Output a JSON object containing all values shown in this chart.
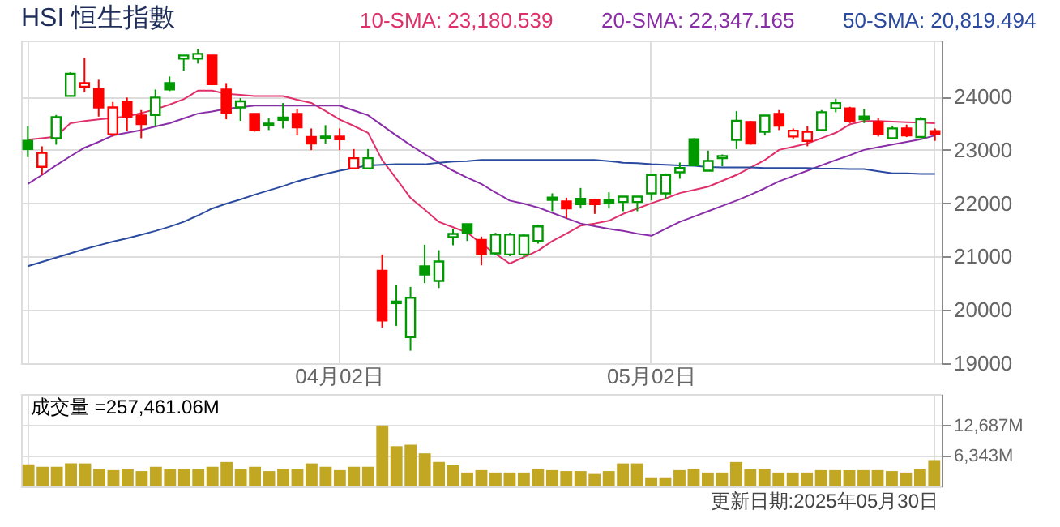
{
  "chart_data": [
    {
      "type": "candlestick",
      "title": "HSI 恒生指數",
      "categories": [
        null,
        null,
        null,
        null,
        null,
        null,
        null,
        null,
        null,
        null,
        null,
        null,
        null,
        null,
        null,
        null,
        null,
        null,
        null,
        null,
        null,
        null,
        "04月02日",
        null,
        null,
        null,
        null,
        null,
        null,
        null,
        null,
        null,
        null,
        null,
        null,
        null,
        null,
        null,
        null,
        null,
        null,
        null,
        null,
        null,
        "05月02日",
        null,
        null,
        null,
        null,
        null,
        null,
        null,
        null,
        null,
        null,
        null,
        null,
        null,
        null,
        null,
        null,
        null,
        null,
        null,
        null
      ],
      "ohlc": [
        [
          23169,
          23442,
          22864,
          23016
        ],
        [
          22682,
          23067,
          22530,
          22945
        ],
        [
          23219,
          23655,
          23098,
          23615
        ],
        [
          24010,
          24456,
          24010,
          24426
        ],
        [
          24183,
          24720,
          24081,
          24253
        ],
        [
          24142,
          24314,
          23625,
          23797
        ],
        [
          23290,
          23899,
          23250,
          23797
        ],
        [
          23899,
          23980,
          23351,
          23625
        ],
        [
          23645,
          23747,
          23219,
          23483
        ],
        [
          23655,
          24132,
          23442,
          23980
        ],
        [
          24253,
          24375,
          24101,
          24132
        ],
        [
          24710,
          24771,
          24487,
          24771
        ],
        [
          24710,
          24892,
          24619,
          24801
        ],
        [
          24771,
          24771,
          24213,
          24233
        ],
        [
          24132,
          24253,
          23574,
          23696
        ],
        [
          23797,
          23970,
          23544,
          23909
        ],
        [
          23676,
          23676,
          23341,
          23371
        ],
        [
          23493,
          23594,
          23371,
          23463
        ],
        [
          23605,
          23878,
          23402,
          23564
        ],
        [
          23676,
          23767,
          23270,
          23422
        ],
        [
          23240,
          23402,
          22996,
          23118
        ],
        [
          23250,
          23463,
          23118,
          23219
        ],
        [
          23250,
          23402,
          22996,
          23199
        ],
        [
          22651,
          23016,
          22651,
          22844
        ],
        [
          22651,
          23016,
          22651,
          22844
        ],
        [
          20735,
          21039,
          19670,
          19802
        ],
        [
          20157,
          20461,
          19701,
          20127
        ],
        [
          19488,
          20431,
          19234,
          20228
        ],
        [
          20816,
          21222,
          20502,
          20664
        ],
        [
          20542,
          21120,
          20410,
          20907
        ],
        [
          21364,
          21516,
          21212,
          21424
        ],
        [
          21607,
          21607,
          21293,
          21445
        ],
        [
          21313,
          21374,
          20836,
          21039
        ],
        [
          21059,
          21445,
          21039,
          21414
        ],
        [
          21039,
          21445,
          21009,
          21414
        ],
        [
          21039,
          21414,
          20988,
          21394
        ],
        [
          21293,
          21597,
          21242,
          21566
        ],
        [
          22104,
          22185,
          21850,
          22063
        ],
        [
          22033,
          22104,
          21718,
          21901
        ],
        [
          22084,
          22286,
          21901,
          21982
        ],
        [
          22063,
          22084,
          21800,
          21982
        ],
        [
          22063,
          22205,
          21901,
          22002
        ],
        [
          22023,
          22124,
          21850,
          22124
        ],
        [
          22023,
          22124,
          21850,
          22124
        ],
        [
          22185,
          22530,
          22053,
          22530
        ],
        [
          22185,
          22560,
          22084,
          22530
        ],
        [
          22580,
          22763,
          22459,
          22662
        ],
        [
          23199,
          23219,
          22712,
          22712
        ],
        [
          22611,
          22986,
          22611,
          22793
        ],
        [
          22844,
          22915,
          22692,
          22885
        ],
        [
          23189,
          23726,
          23016,
          23544
        ],
        [
          23523,
          23544,
          23098,
          23118
        ],
        [
          23341,
          23645,
          23270,
          23645
        ],
        [
          23676,
          23747,
          23371,
          23452
        ],
        [
          23250,
          23402,
          23199,
          23361
        ],
        [
          23169,
          23442,
          23067,
          23341
        ],
        [
          23371,
          23747,
          23351,
          23706
        ],
        [
          23777,
          23959,
          23706,
          23878
        ],
        [
          23777,
          23807,
          23503,
          23544
        ],
        [
          23625,
          23767,
          23503,
          23574
        ],
        [
          23523,
          23594,
          23250,
          23300
        ],
        [
          23219,
          23442,
          23199,
          23402
        ],
        [
          23402,
          23473,
          23240,
          23270
        ],
        [
          23240,
          23615,
          23219,
          23574
        ],
        [
          23351,
          23402,
          23169,
          23300
        ]
      ],
      "colors": [
        "#009900",
        "#ff0000",
        "#009900",
        "#009900",
        "#ff0000",
        "#ff0000",
        "#ff0000",
        "#ff0000",
        "#ff0000",
        "#009900",
        "#009900",
        "#009900",
        "#009900",
        "#ff0000",
        "#ff0000",
        "#009900",
        "#ff0000",
        "#009900",
        "#009900",
        "#ff0000",
        "#ff0000",
        "#009900",
        "#ff0000",
        "#ff0000",
        "#009900",
        "#ff0000",
        "#009900",
        "#009900",
        "#009900",
        "#009900",
        "#009900",
        "#009900",
        "#ff0000",
        "#009900",
        "#009900",
        "#009900",
        "#009900",
        "#009900",
        "#ff0000",
        "#009900",
        "#ff0000",
        "#009900",
        "#009900",
        "#009900",
        "#009900",
        "#009900",
        "#009900",
        "#009900",
        "#009900",
        "#009900",
        "#009900",
        "#ff0000",
        "#009900",
        "#ff0000",
        "#ff0000",
        "#ff0000",
        "#009900",
        "#009900",
        "#ff0000",
        "#009900",
        "#ff0000",
        "#009900",
        "#ff0000",
        "#009900",
        "#ff0000"
      ],
      "series": [
        {
          "name": "10-SMA: 23,180.539",
          "type": "line",
          "color": "#e0306a",
          "values": [
            23190,
            23220,
            23250,
            23500,
            23540,
            23570,
            23600,
            23630,
            23690,
            23760,
            23850,
            23950,
            24110,
            24110,
            24050,
            24030,
            24010,
            24010,
            24010,
            23940,
            23880,
            23730,
            23570,
            23450,
            23320,
            22810,
            22460,
            22100,
            21880,
            21650,
            21550,
            21450,
            21240,
            21050,
            20870,
            20990,
            21110,
            21290,
            21430,
            21580,
            21620,
            21670,
            21800,
            21900,
            22000,
            22090,
            22190,
            22250,
            22310,
            22420,
            22530,
            22670,
            22810,
            23000,
            23060,
            23120,
            23220,
            23320,
            23480,
            23540,
            23540,
            23530,
            23520,
            23510,
            23500
          ]
        },
        {
          "name": "20-SMA: 22,347.165",
          "type": "line",
          "color": "#8a2ea8",
          "values": [
            22360,
            22530,
            22710,
            22880,
            23040,
            23150,
            23270,
            23320,
            23370,
            23440,
            23500,
            23590,
            23680,
            23720,
            23770,
            23800,
            23830,
            23830,
            23830,
            23830,
            23830,
            23830,
            23830,
            23740,
            23650,
            23460,
            23270,
            23090,
            22920,
            22760,
            22610,
            22480,
            22360,
            22200,
            22050,
            21990,
            21920,
            21820,
            21720,
            21620,
            21570,
            21520,
            21480,
            21430,
            21390,
            21520,
            21650,
            21750,
            21850,
            21950,
            22050,
            22160,
            22280,
            22410,
            22510,
            22610,
            22710,
            22810,
            22900,
            23000,
            23050,
            23100,
            23150,
            23200,
            23270
          ]
        },
        {
          "name": "50-SMA: 20,819.494",
          "type": "line",
          "color": "#2a4aa0",
          "values": [
            20820,
            20900,
            20980,
            21060,
            21140,
            21210,
            21280,
            21340,
            21410,
            21480,
            21560,
            21650,
            21770,
            21900,
            21990,
            22070,
            22160,
            22240,
            22320,
            22410,
            22480,
            22550,
            22610,
            22660,
            22710,
            22720,
            22730,
            22730,
            22730,
            22760,
            22780,
            22790,
            22810,
            22810,
            22810,
            22810,
            22810,
            22810,
            22810,
            22810,
            22810,
            22790,
            22760,
            22750,
            22730,
            22720,
            22710,
            22700,
            22680,
            22670,
            22670,
            22670,
            22660,
            22660,
            22660,
            22660,
            22650,
            22650,
            22640,
            22640,
            22600,
            22560,
            22560,
            22550,
            22550
          ]
        }
      ],
      "ylim": [
        19000,
        25050
      ],
      "yticks": [
        19000,
        20000,
        21000,
        22000,
        23000,
        24000
      ],
      "grid": true,
      "legend": "top right"
    },
    {
      "type": "bar",
      "title": "成交量 =257,461.06M",
      "categories": [
        null,
        null,
        null,
        null,
        null,
        null,
        null,
        null,
        null,
        null,
        null,
        null,
        null,
        null,
        null,
        null,
        null,
        null,
        null,
        null,
        null,
        null,
        null,
        null,
        null,
        null,
        null,
        null,
        null,
        null,
        null,
        null,
        null,
        null,
        null,
        null,
        null,
        null,
        null,
        null,
        null,
        null,
        null,
        null,
        null,
        null,
        null,
        null,
        null,
        null,
        null,
        null,
        null,
        null,
        null,
        null,
        null,
        null,
        null,
        null,
        null,
        null,
        null,
        null,
        null
      ],
      "values": [
        4600,
        4100,
        4100,
        4800,
        4800,
        3700,
        3400,
        3700,
        3200,
        4100,
        3600,
        3700,
        3600,
        4100,
        5100,
        3600,
        4100,
        3200,
        3700,
        3600,
        4800,
        4100,
        3400,
        4100,
        4100,
        12700,
        8400,
        8700,
        6900,
        5100,
        4400,
        2900,
        3400,
        2900,
        2900,
        2900,
        3700,
        3400,
        3200,
        3200,
        2600,
        3200,
        4800,
        4800,
        1900,
        1900,
        3400,
        3700,
        2900,
        2900,
        5100,
        3600,
        3700,
        2900,
        2900,
        2900,
        3400,
        3400,
        3400,
        3400,
        3400,
        3200,
        2900,
        3700,
        5500
      ],
      "color": "#c2a722",
      "ylim": [
        0,
        19270
      ],
      "yticks": [
        {
          "value": 6343,
          "label": "6,343M"
        },
        {
          "value": 12687,
          "label": "12,687M"
        }
      ],
      "grid": true,
      "annotations": [
        "更新日期:2025年05月30日"
      ]
    }
  ]
}
